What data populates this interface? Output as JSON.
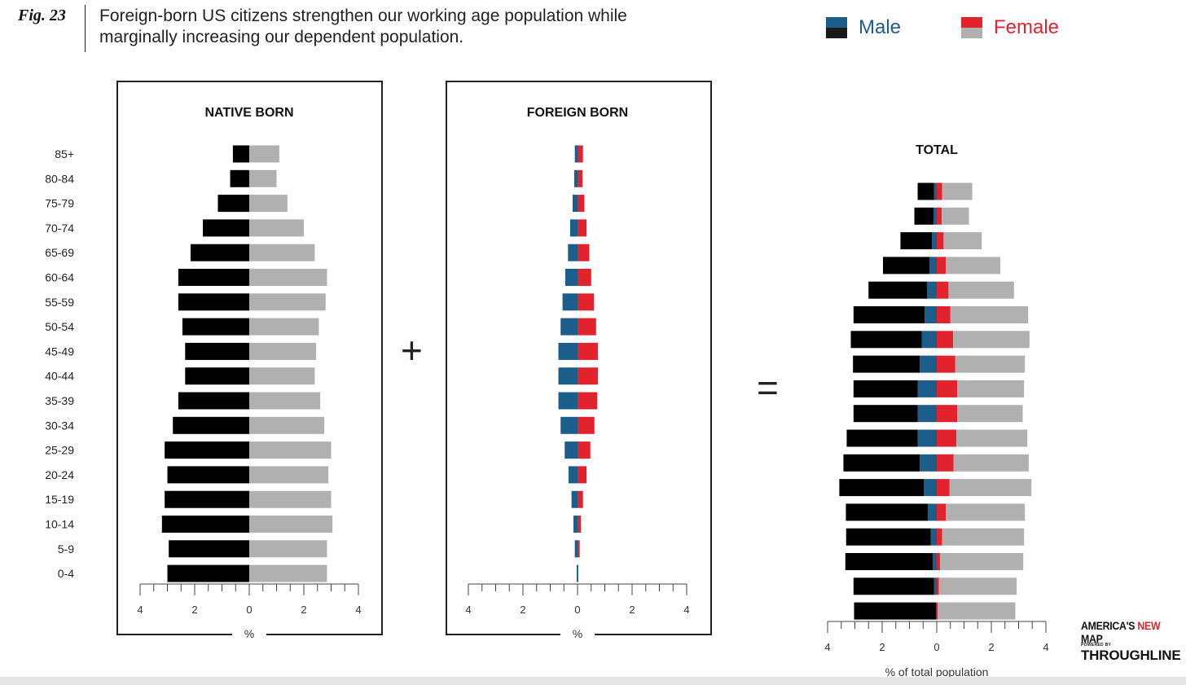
{
  "figure": {
    "label": "Fig. 23",
    "subtitle": "Foreign-born US citizens strengthen our working age population while marginally increasing our dependent population."
  },
  "legend": {
    "male_label": "Male",
    "female_label": "Female",
    "male_colors": [
      "#1b5e8c",
      "#1a1a1a"
    ],
    "female_colors": [
      "#e2232e",
      "#b0b0b0"
    ]
  },
  "operators": {
    "plus": "+",
    "equals": "="
  },
  "colors": {
    "native_male": "#000000",
    "native_female": "#b0b0b0",
    "foreign_male": "#1b5e8c",
    "foreign_female": "#e2232e",
    "text_male": "#1b5e8c",
    "text_female": "#e2232e"
  },
  "branding": {
    "line1_a": "AMERICA'S ",
    "line1_b": "NEW",
    "line1_c": " MAP",
    "line2": "POWERED BY",
    "line3": "THROUGHLINE"
  },
  "chart_data": [
    {
      "type": "bar",
      "title": "NATIVE BORN",
      "xlabel": "%",
      "xlim": [
        -4,
        4
      ],
      "x_ticks": [
        "4",
        "2",
        "0",
        "2",
        "4"
      ],
      "categories": [
        "85+",
        "80-84",
        "75-79",
        "70-74",
        "65-69",
        "60-64",
        "55-59",
        "50-54",
        "45-49",
        "40-44",
        "35-39",
        "30-34",
        "25-29",
        "20-24",
        "15-19",
        "10-14",
        "5-9",
        "0-4"
      ],
      "series": [
        {
          "name": "Male",
          "values": [
            0.6,
            0.7,
            1.15,
            1.7,
            2.15,
            2.6,
            2.6,
            2.45,
            2.35,
            2.35,
            2.6,
            2.8,
            3.1,
            3.0,
            3.1,
            3.2,
            2.95,
            3.0
          ]
        },
        {
          "name": "Female",
          "values": [
            1.1,
            1.0,
            1.4,
            2.0,
            2.4,
            2.85,
            2.8,
            2.55,
            2.45,
            2.4,
            2.6,
            2.75,
            3.0,
            2.9,
            3.0,
            3.05,
            2.85,
            2.85
          ]
        }
      ]
    },
    {
      "type": "bar",
      "title": "FOREIGN BORN",
      "xlabel": "%",
      "xlim": [
        -4,
        4
      ],
      "x_ticks": [
        "4",
        "2",
        "0",
        "2",
        "4"
      ],
      "categories": [
        "85+",
        "80-84",
        "75-79",
        "70-74",
        "65-69",
        "60-64",
        "55-59",
        "50-54",
        "45-49",
        "40-44",
        "35-39",
        "30-34",
        "25-29",
        "20-24",
        "15-19",
        "10-14",
        "5-9",
        "0-4"
      ],
      "series": [
        {
          "name": "Male",
          "values": [
            0.1,
            0.12,
            0.18,
            0.27,
            0.35,
            0.45,
            0.55,
            0.62,
            0.7,
            0.7,
            0.7,
            0.62,
            0.47,
            0.33,
            0.22,
            0.15,
            0.1,
            0.03
          ]
        },
        {
          "name": "Female",
          "values": [
            0.2,
            0.18,
            0.25,
            0.33,
            0.43,
            0.5,
            0.6,
            0.68,
            0.75,
            0.75,
            0.72,
            0.62,
            0.47,
            0.33,
            0.2,
            0.12,
            0.08,
            0.03
          ]
        }
      ]
    },
    {
      "type": "bar",
      "title": "TOTAL",
      "xlabel": "% of total population",
      "xlim": [
        -4,
        4
      ],
      "x_ticks": [
        "4",
        "2",
        "0",
        "2",
        "4"
      ],
      "categories": [
        "85+",
        "80-84",
        "75-79",
        "70-74",
        "65-69",
        "60-64",
        "55-59",
        "50-54",
        "45-49",
        "40-44",
        "35-39",
        "30-34",
        "25-29",
        "20-24",
        "15-19",
        "10-14",
        "5-9",
        "0-4"
      ],
      "series": [
        {
          "name": "Male (foreign born)",
          "values": [
            0.1,
            0.12,
            0.18,
            0.27,
            0.35,
            0.45,
            0.55,
            0.62,
            0.7,
            0.7,
            0.7,
            0.62,
            0.47,
            0.33,
            0.22,
            0.15,
            0.1,
            0.03
          ]
        },
        {
          "name": "Male (native born)",
          "values": [
            0.6,
            0.7,
            1.15,
            1.7,
            2.15,
            2.6,
            2.6,
            2.45,
            2.35,
            2.35,
            2.6,
            2.8,
            3.1,
            3.0,
            3.1,
            3.2,
            2.95,
            3.0
          ]
        },
        {
          "name": "Female (foreign born)",
          "values": [
            0.2,
            0.18,
            0.25,
            0.33,
            0.43,
            0.5,
            0.6,
            0.68,
            0.75,
            0.75,
            0.72,
            0.62,
            0.47,
            0.33,
            0.2,
            0.12,
            0.08,
            0.03
          ]
        },
        {
          "name": "Female (native born)",
          "values": [
            1.1,
            1.0,
            1.4,
            2.0,
            2.4,
            2.85,
            2.8,
            2.55,
            2.45,
            2.4,
            2.6,
            2.75,
            3.0,
            2.9,
            3.0,
            3.05,
            2.85,
            2.85
          ]
        }
      ]
    }
  ]
}
